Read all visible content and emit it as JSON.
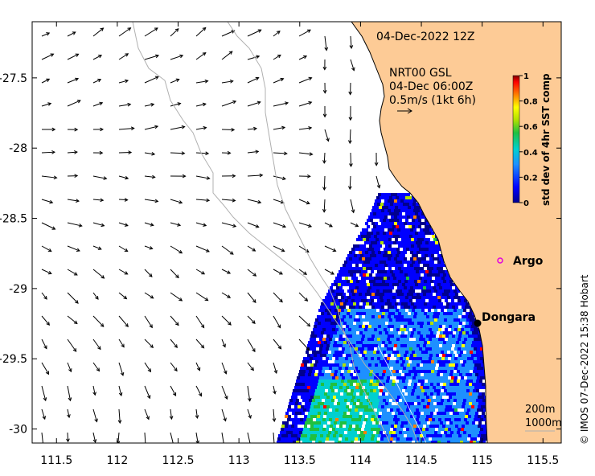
{
  "chart_data": {
    "type": "heatmap",
    "title": "",
    "xlabel": "",
    "ylabel": "",
    "xlim": [
      111.3,
      115.65
    ],
    "ylim": [
      -30.1,
      -27.1
    ],
    "x_ticks": [
      111.5,
      112,
      112.5,
      113,
      113.5,
      114,
      114.5,
      115,
      115.5
    ],
    "x_tick_labels": [
      "111.5",
      "112",
      "112.5",
      "113",
      "113.5",
      "114",
      "114.5",
      "115",
      "115.5"
    ],
    "y_ticks": [
      -27.5,
      -28,
      -28.5,
      -29,
      -29.5,
      -30
    ],
    "y_tick_labels": [
      "-27.5",
      "-28",
      "-28.5",
      "-29",
      "-29.5",
      "-30"
    ],
    "date_label": "04-Dec-2022 12Z",
    "current_label_lines": [
      "NRT00 GSL",
      "04-Dec 06:00Z",
      "0.5m/s (1kt 6h)"
    ],
    "colorbar": {
      "label": "std dev of 4hr SST comp",
      "range": [
        0,
        1
      ],
      "ticks": [
        0,
        0.2,
        0.4,
        0.6,
        0.8,
        1
      ],
      "tick_labels": [
        "0",
        "0.2",
        "0.4",
        "0.6",
        "0.8",
        "1"
      ]
    },
    "places": [
      {
        "name": "Argo",
        "lon": 115.14,
        "lat": -28.85,
        "marker": "circle-open",
        "color": "#e000e0"
      },
      {
        "name": "Dongara",
        "lon": 114.93,
        "lat": -29.26,
        "marker": "dot",
        "color": "#000000"
      }
    ],
    "contours": [
      "200m",
      "1000m"
    ],
    "land_color": "#fdcb96",
    "credit": "© IMOS 07-Dec-2022 15:38 Hobart"
  }
}
